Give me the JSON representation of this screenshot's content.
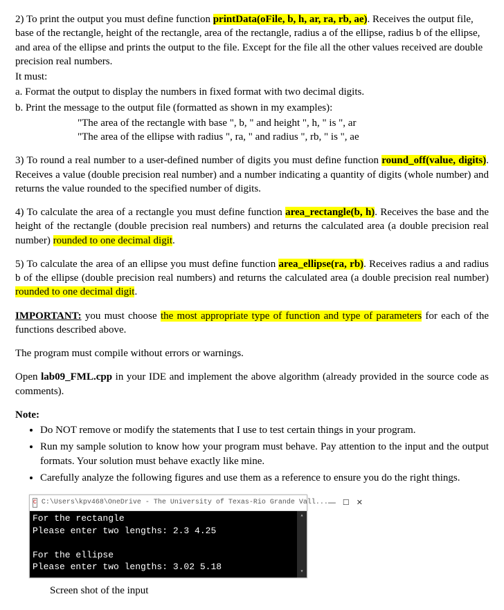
{
  "sec2": {
    "lead": "2) To print the output you must define function ",
    "fn": "printData(oFile, b, h, ar, ra, rb, ae)",
    "rest": ". Receives the output file, base of the rectangle, height of the rectangle, area of the rectangle, radius a of the ellipse, radius b of the ellipse, and area of the ellipse and prints the output to the file. Except for the file all the other values received are double precision real numbers.",
    "must": "It must:",
    "a": "a. Format the output to display the numbers in fixed format with two decimal digits.",
    "b": "b. Print the message to the output file (formatted as shown in my examples):",
    "ex1": "\"The area of the rectangle with base \", b, \" and height \", h, \" is \", ar",
    "ex2": "\"The area of the ellipse with radius \", ra, \" and radius \", rb, \" is \", ae"
  },
  "sec3": {
    "lead": "3) To round a real number to a user-defined number of digits you must define function ",
    "fn": "round_off(value, digits)",
    "rest": ". Receives a value (double precision real number) and a number indicating a quantity of digits (whole number) and returns the value rounded to the specified number of digits."
  },
  "sec4": {
    "lead": "4) To calculate the area of a rectangle you must define function ",
    "fn": "area_rectangle(b, h)",
    "mid": ". Receives the base and the height of the rectangle (double precision real numbers) and returns the calculated area (a double precision real number) ",
    "hl": "rounded to one decimal digit",
    "end": "."
  },
  "sec5": {
    "lead": "5) To calculate the area of an ellipse you must define function ",
    "fn": "area_ellipse(ra, rb)",
    "mid": ". Receives radius a and radius b of the ellipse (double precision real numbers) and returns the calculated area (a double precision real number) ",
    "hl": "rounded to one decimal digit",
    "end": "."
  },
  "important": {
    "label": "IMPORTANT:",
    "pre": " you must choose ",
    "hl": "the most appropriate type of function and type of parameters",
    "post": " for each of the functions described above."
  },
  "compile": "The program must compile without errors or warnings.",
  "open": {
    "pre": "Open ",
    "file": "lab09_FML.cpp",
    "post": " in your IDE and implement the above algorithm (already provided in the source code as comments)."
  },
  "note_label": "Note:",
  "notes": {
    "n1": "Do NOT remove or modify the statements that I use to test certain things in your program.",
    "n2": "Run my sample solution to know how your program must behave. Pay attention to the input and the output formats. Your solution must behave exactly like mine.",
    "n3": "Carefully analyze the following figures and use them as a reference to ensure you do the right things."
  },
  "console": {
    "title": "C:\\Users\\kpv468\\OneDrive - The University of Texas-Rio Grande Vall...",
    "lines": {
      "l1": "For the rectangle",
      "l2": "Please enter two lengths: 2.3 4.25",
      "l3": " ",
      "l4": "For the ellipse",
      "l5": "Please enter two lengths: 3.02 5.18"
    },
    "buttons": {
      "min": "—",
      "max": "☐",
      "close": "✕"
    },
    "scroll": {
      "up": "▴",
      "down": "▾"
    }
  },
  "caption": "Screen shot of the input"
}
